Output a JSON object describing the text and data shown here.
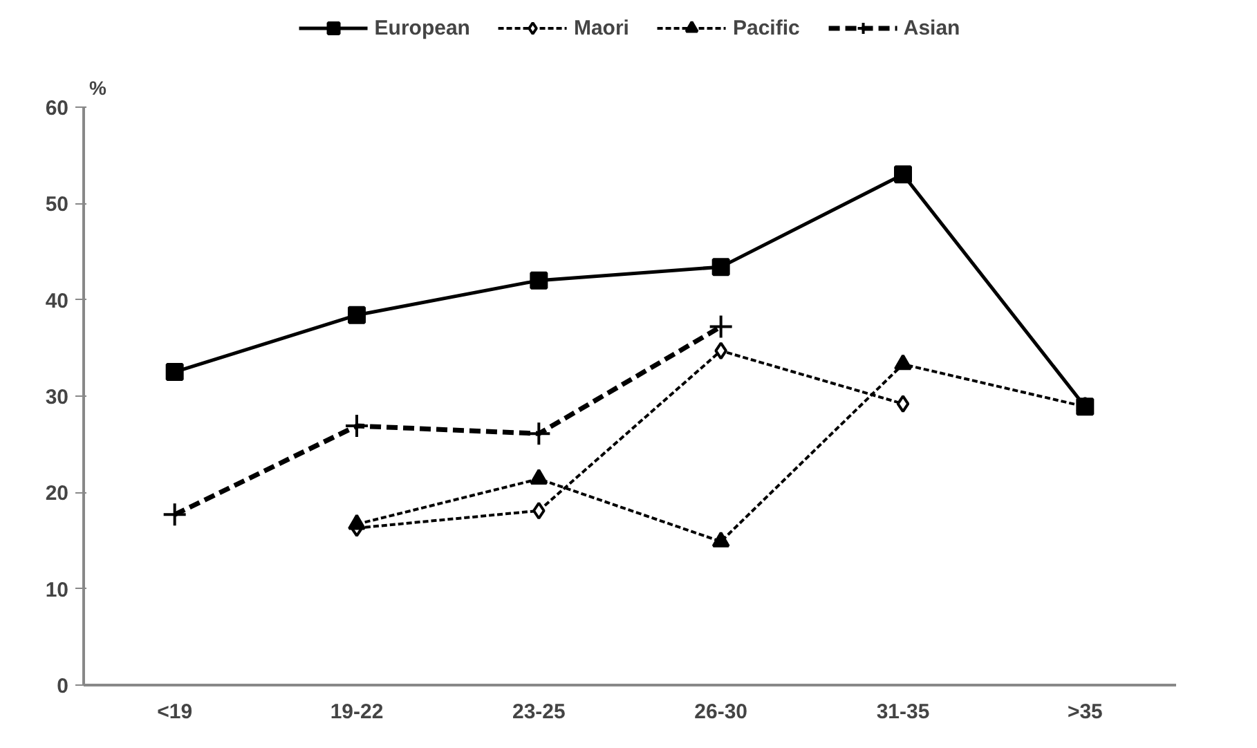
{
  "chart_data": {
    "type": "line",
    "ylabel": "%",
    "categories": [
      "<19",
      "19-22",
      "23-25",
      "26-30",
      "31-35",
      ">35"
    ],
    "series": [
      {
        "name": "European",
        "color": "#000000",
        "marker": "square",
        "line_style": "solid",
        "values": [
          32.5,
          38.4,
          42.0,
          43.4,
          53.0,
          28.9
        ]
      },
      {
        "name": "Maori",
        "color": "#000000",
        "marker": "diamond",
        "line_style": "dotted",
        "values": [
          null,
          16.3,
          18.1,
          34.7,
          29.2,
          null
        ]
      },
      {
        "name": "Pacific",
        "color": "#000000",
        "marker": "triangle",
        "line_style": "dotted",
        "values": [
          null,
          16.7,
          21.4,
          14.9,
          33.3,
          28.9
        ]
      },
      {
        "name": "Asian",
        "color": "#000000",
        "marker": "cross",
        "line_style": "dashed",
        "values": [
          17.7,
          26.9,
          26.1,
          37.2,
          null,
          null
        ]
      }
    ],
    "ylim": [
      0,
      60
    ],
    "yticks": [
      0,
      10,
      20,
      30,
      40,
      50,
      60
    ],
    "grid": false,
    "legend": "top"
  }
}
